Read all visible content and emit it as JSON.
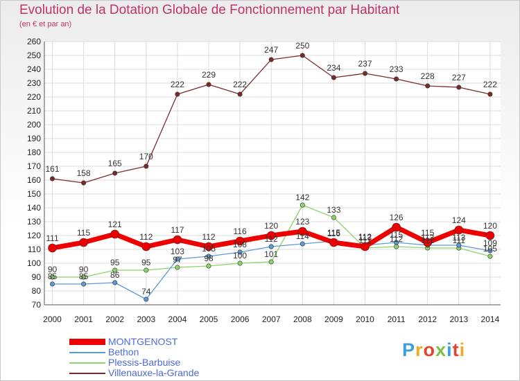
{
  "header": {
    "title": "Evolution de la Dotation Globale de Fonctionnement par Habitant",
    "subtitle": "(en € et par an)"
  },
  "logo": {
    "text": "Proxiti",
    "colors": [
      "#3aa0d8",
      "#f5a623",
      "#e2442f",
      "#7cc242",
      "#3aa0d8",
      "#e2442f",
      "#f5a623"
    ]
  },
  "chart_data": {
    "type": "line",
    "x": [
      "2000",
      "2001",
      "2002",
      "2003",
      "2004",
      "2005",
      "2006",
      "2007",
      "2008",
      "2009",
      "2010",
      "2011",
      "2012",
      "2013",
      "2014"
    ],
    "ylim": [
      70,
      260
    ],
    "yticks": [
      70,
      80,
      90,
      100,
      110,
      120,
      130,
      140,
      150,
      160,
      170,
      180,
      190,
      200,
      210,
      220,
      230,
      240,
      250,
      260
    ],
    "grid": true,
    "legend_position": "bottom-left",
    "series": [
      {
        "name": "Villenauxe-la-Grande",
        "color": "#7b2a2a",
        "width": 1.3,
        "values": [
          161,
          158,
          165,
          170,
          222,
          229,
          222,
          247,
          250,
          234,
          237,
          233,
          228,
          227,
          222
        ],
        "labels": [
          "161",
          "158",
          "165",
          "170",
          "222",
          "229",
          "222",
          "247",
          "250",
          "234",
          "237",
          "233",
          "228",
          "227",
          "222"
        ]
      },
      {
        "name": "Plessis-Barbuise",
        "color": "#8ed46a",
        "width": 1.3,
        "values": [
          90,
          90,
          95,
          95,
          97,
          98,
          100,
          101,
          142,
          133,
          111,
          112,
          111,
          111,
          105
        ],
        "labels": [
          "90",
          "90",
          "95",
          "95",
          "97",
          "98",
          "100",
          "101",
          "142",
          "133",
          "111",
          "112",
          "111",
          "111",
          "105"
        ]
      },
      {
        "name": "Bethon",
        "color": "#5b9bd5",
        "width": 1.3,
        "values": [
          85,
          85,
          86,
          74,
          103,
          105,
          108,
          112,
          114,
          116,
          113,
          115,
          113,
          113,
          109
        ],
        "labels": [
          "85",
          "85",
          "86",
          "74",
          "103",
          "105",
          "108",
          "112",
          "114",
          "116",
          "113",
          "115",
          "113",
          "113",
          "109"
        ]
      },
      {
        "name": "MONTGENOST",
        "color": "#ee0000",
        "width": 7,
        "values": [
          111,
          115,
          121,
          112,
          117,
          112,
          116,
          120,
          123,
          115,
          112,
          126,
          115,
          124,
          120
        ],
        "labels": [
          "111",
          "115",
          "121",
          "112",
          "117",
          "112",
          "116",
          "120",
          "123",
          "115",
          "112",
          "126",
          "115",
          "124",
          "120"
        ]
      }
    ]
  }
}
